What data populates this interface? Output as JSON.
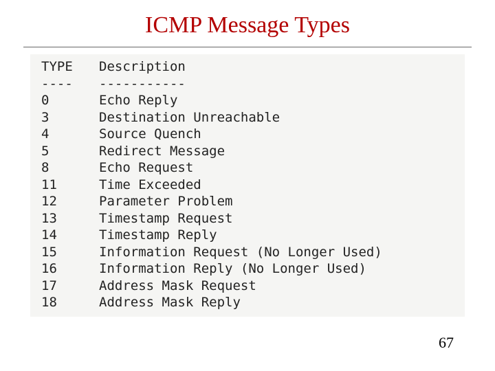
{
  "title": {
    "text": "ICMP Message Types",
    "color": "#b30000",
    "fontsize": 34
  },
  "rule_color": "#666666",
  "code": {
    "bg": "#f5f5f3",
    "fg": "#222222",
    "fontsize": 19,
    "line_height": 24.5,
    "headers": {
      "type": "TYPE",
      "desc": "Description"
    },
    "dashes": {
      "type": "----",
      "desc": "-----------"
    },
    "rows": [
      {
        "type": "0",
        "desc": "Echo Reply"
      },
      {
        "type": "3",
        "desc": "Destination Unreachable"
      },
      {
        "type": "4",
        "desc": "Source Quench"
      },
      {
        "type": "5",
        "desc": "Redirect Message"
      },
      {
        "type": "8",
        "desc": "Echo Request"
      },
      {
        "type": "11",
        "desc": "Time Exceeded"
      },
      {
        "type": "12",
        "desc": "Parameter Problem"
      },
      {
        "type": "13",
        "desc": "Timestamp Request"
      },
      {
        "type": "14",
        "desc": "Timestamp Reply"
      },
      {
        "type": "15",
        "desc": "Information Request (No Longer Used)"
      },
      {
        "type": "16",
        "desc": "Information Reply (No Longer Used)"
      },
      {
        "type": "17",
        "desc": "Address Mask Request"
      },
      {
        "type": "18",
        "desc": "Address Mask Reply"
      }
    ]
  },
  "page_number": {
    "text": "67",
    "color": "#000000",
    "fontsize": 22
  }
}
